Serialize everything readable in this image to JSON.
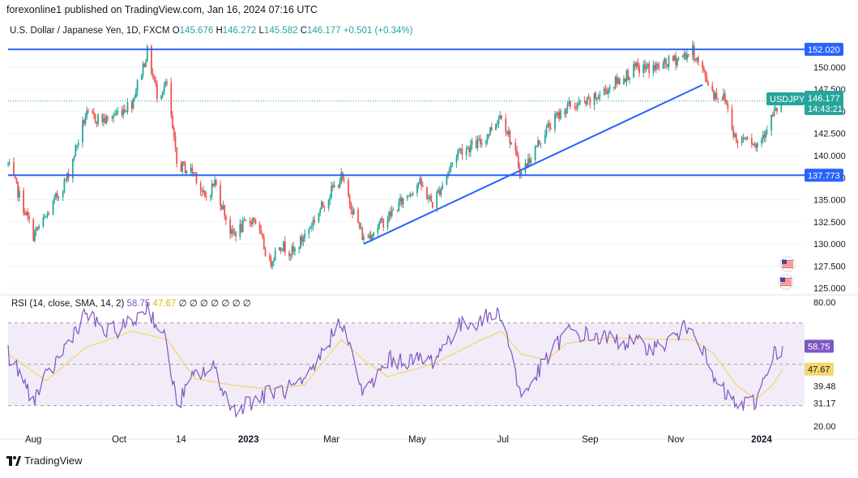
{
  "header": {
    "published_line": "forexonline1 published on TradingView.com, Jan 16, 2024 07:16 UTC"
  },
  "legend": {
    "symbol_name": "U.S. Dollar / Japanese Yen, 1D, FXCM",
    "o_label": "O",
    "o_value": "145.676",
    "h_label": "H",
    "h_value": "146.272",
    "l_label": "L",
    "l_value": "145.582",
    "c_label": "C",
    "c_value": "146.177",
    "change": "+0.501 (+0.34%)"
  },
  "rsi_legend": {
    "label": "RSI (14, close, SMA, 14, 2)",
    "rsi_value": "58.75",
    "sma_value": "47.67",
    "hidden_markers": [
      "∅",
      "∅",
      "∅",
      "∅",
      "∅",
      "∅",
      "∅"
    ]
  },
  "badges": {
    "symbol": "USDJPY",
    "price": "146.177",
    "countdown": "14:43:21",
    "upper_level": "152.020",
    "lower_level": "137.773",
    "rsi_value": "58.75",
    "rsi_sma": "47.67"
  },
  "brand": {
    "name": "TradingView"
  },
  "colors": {
    "up": "#26a69a",
    "down": "#ef5350",
    "trendline": "#2962ff",
    "rsi": "#7e57c2",
    "rsi_sma": "#f5d76e",
    "rsi_band": "#ede7f6"
  },
  "chart_data": [
    {
      "type": "candlestick",
      "title": "U.S. Dollar / Japanese Yen, 1D, FXCM",
      "x_tick_labels": [
        "Aug",
        "Oct",
        "14",
        "2023",
        "Mar",
        "May",
        "Jul",
        "Sep",
        "Nov",
        "2024"
      ],
      "y_tick_labels": [
        "125.000",
        "127.500",
        "130.000",
        "132.500",
        "135.000",
        "137.500",
        "140.000",
        "142.500",
        "145.000",
        "147.500",
        "150.000"
      ],
      "ylim": [
        124.6,
        153.2
      ],
      "horizontal_levels": [
        152.02,
        137.773
      ],
      "trendline": {
        "from": {
          "date": "2023-03-24",
          "price": 130.0
        },
        "to": {
          "date": "2023-11-20",
          "price": 148.0
        }
      },
      "last": {
        "open": 145.676,
        "high": 146.272,
        "low": 145.582,
        "close": 146.177,
        "change": 0.501,
        "change_pct": 0.34
      },
      "price_path": [
        {
          "date": "2022-07-14",
          "price": 139.0
        },
        {
          "date": "2022-08-01",
          "price": 131.0
        },
        {
          "date": "2022-08-10",
          "price": 133.0
        },
        {
          "date": "2022-08-25",
          "price": 137.5
        },
        {
          "date": "2022-09-07",
          "price": 144.5
        },
        {
          "date": "2022-09-22",
          "price": 144.0
        },
        {
          "date": "2022-10-10",
          "price": 146.0
        },
        {
          "date": "2022-10-21",
          "price": 151.7
        },
        {
          "date": "2022-10-28",
          "price": 147.0
        },
        {
          "date": "2022-11-04",
          "price": 148.0
        },
        {
          "date": "2022-11-11",
          "price": 139.0
        },
        {
          "date": "2022-11-24",
          "price": 138.0
        },
        {
          "date": "2022-12-01",
          "price": 135.0
        },
        {
          "date": "2022-12-08",
          "price": 137.0
        },
        {
          "date": "2022-12-20",
          "price": 131.0
        },
        {
          "date": "2023-01-05",
          "price": 133.0
        },
        {
          "date": "2023-01-16",
          "price": 127.8
        },
        {
          "date": "2023-01-23",
          "price": 130.0
        },
        {
          "date": "2023-02-02",
          "price": 129.0
        },
        {
          "date": "2023-02-10",
          "price": 131.0
        },
        {
          "date": "2023-03-01",
          "price": 136.0
        },
        {
          "date": "2023-03-08",
          "price": 137.5
        },
        {
          "date": "2023-03-24",
          "price": 130.5
        },
        {
          "date": "2023-04-10",
          "price": 133.0
        },
        {
          "date": "2023-05-02",
          "price": 137.0
        },
        {
          "date": "2023-05-12",
          "price": 134.5
        },
        {
          "date": "2023-05-30",
          "price": 140.5
        },
        {
          "date": "2023-06-16",
          "price": 141.5
        },
        {
          "date": "2023-06-30",
          "price": 144.8
        },
        {
          "date": "2023-07-14",
          "price": 138.0
        },
        {
          "date": "2023-08-01",
          "price": 143.0
        },
        {
          "date": "2023-08-15",
          "price": 145.5
        },
        {
          "date": "2023-09-01",
          "price": 146.0
        },
        {
          "date": "2023-09-15",
          "price": 147.8
        },
        {
          "date": "2023-10-03",
          "price": 149.8
        },
        {
          "date": "2023-10-20",
          "price": 150.0
        },
        {
          "date": "2023-11-13",
          "price": 151.8
        },
        {
          "date": "2023-11-28",
          "price": 147.0
        },
        {
          "date": "2023-12-06",
          "price": 146.5
        },
        {
          "date": "2023-12-14",
          "price": 141.5
        },
        {
          "date": "2023-12-22",
          "price": 142.5
        },
        {
          "date": "2023-12-28",
          "price": 141.0
        },
        {
          "date": "2024-01-09",
          "price": 144.5
        },
        {
          "date": "2024-01-16",
          "price": 146.2
        }
      ]
    },
    {
      "type": "line",
      "title": "RSI (14, close, SMA, 14, 2)",
      "y_tick_labels": [
        "20.00",
        "31.17",
        "39.48",
        "80.00"
      ],
      "ylim": [
        18.5,
        82
      ],
      "bands": [
        30,
        70
      ],
      "midline": 50,
      "last_rsi": 58.75,
      "last_sma": 47.67,
      "rsi_path": [
        {
          "date": "2022-07-14",
          "rsi": 55
        },
        {
          "date": "2022-08-01",
          "rsi": 33
        },
        {
          "date": "2022-08-25",
          "rsi": 60
        },
        {
          "date": "2022-09-07",
          "rsi": 75
        },
        {
          "date": "2022-09-22",
          "rsi": 65
        },
        {
          "date": "2022-10-10",
          "rsi": 70
        },
        {
          "date": "2022-10-21",
          "rsi": 78
        },
        {
          "date": "2022-11-04",
          "rsi": 60
        },
        {
          "date": "2022-11-11",
          "rsi": 30
        },
        {
          "date": "2022-11-24",
          "rsi": 45
        },
        {
          "date": "2022-12-08",
          "rsi": 48
        },
        {
          "date": "2022-12-20",
          "rsi": 28
        },
        {
          "date": "2023-01-16",
          "rsi": 36
        },
        {
          "date": "2023-02-10",
          "rsi": 40
        },
        {
          "date": "2023-03-08",
          "rsi": 72
        },
        {
          "date": "2023-03-24",
          "rsi": 35
        },
        {
          "date": "2023-04-10",
          "rsi": 52
        },
        {
          "date": "2023-05-12",
          "rsi": 52
        },
        {
          "date": "2023-05-30",
          "rsi": 68
        },
        {
          "date": "2023-06-30",
          "rsi": 75
        },
        {
          "date": "2023-07-14",
          "rsi": 34
        },
        {
          "date": "2023-08-15",
          "rsi": 66
        },
        {
          "date": "2023-09-15",
          "rsi": 62
        },
        {
          "date": "2023-10-20",
          "rsi": 58
        },
        {
          "date": "2023-11-13",
          "rsi": 70
        },
        {
          "date": "2023-11-28",
          "rsi": 42
        },
        {
          "date": "2023-12-14",
          "rsi": 30
        },
        {
          "date": "2023-12-28",
          "rsi": 32
        },
        {
          "date": "2024-01-09",
          "rsi": 55
        },
        {
          "date": "2024-01-16",
          "rsi": 58.75
        }
      ],
      "sma_path": [
        {
          "date": "2022-07-14",
          "sma": 55
        },
        {
          "date": "2022-08-10",
          "sma": 42
        },
        {
          "date": "2022-09-07",
          "sma": 58
        },
        {
          "date": "2022-10-10",
          "sma": 66
        },
        {
          "date": "2022-11-04",
          "sma": 62
        },
        {
          "date": "2022-11-24",
          "sma": 43
        },
        {
          "date": "2022-12-20",
          "sma": 40
        },
        {
          "date": "2023-01-16",
          "sma": 38
        },
        {
          "date": "2023-02-10",
          "sma": 40
        },
        {
          "date": "2023-03-08",
          "sma": 62
        },
        {
          "date": "2023-03-24",
          "sma": 52
        },
        {
          "date": "2023-04-10",
          "sma": 44
        },
        {
          "date": "2023-05-12",
          "sma": 50
        },
        {
          "date": "2023-06-16",
          "sma": 62
        },
        {
          "date": "2023-06-30",
          "sma": 66
        },
        {
          "date": "2023-07-14",
          "sma": 55
        },
        {
          "date": "2023-08-01",
          "sma": 52
        },
        {
          "date": "2023-08-15",
          "sma": 60
        },
        {
          "date": "2023-09-15",
          "sma": 63
        },
        {
          "date": "2023-10-20",
          "sma": 62
        },
        {
          "date": "2023-11-13",
          "sma": 62
        },
        {
          "date": "2023-11-28",
          "sma": 55
        },
        {
          "date": "2023-12-14",
          "sma": 40
        },
        {
          "date": "2023-12-28",
          "sma": 33
        },
        {
          "date": "2024-01-09",
          "sma": 40
        },
        {
          "date": "2024-01-16",
          "sma": 47.67
        }
      ]
    }
  ]
}
